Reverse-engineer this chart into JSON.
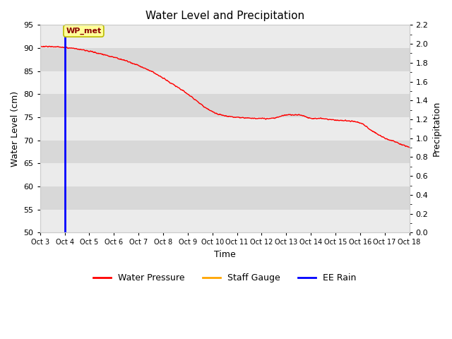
{
  "title": "Water Level and Precipitation",
  "xlabel": "Time",
  "ylabel_left": "Water Level (cm)",
  "ylabel_right": "Precipitation",
  "ylim_left": [
    50,
    95
  ],
  "ylim_right": [
    0.0,
    2.2
  ],
  "yticks_left": [
    50,
    55,
    60,
    65,
    70,
    75,
    80,
    85,
    90,
    95
  ],
  "yticks_right_major": [
    0.0,
    0.2,
    0.4,
    0.6,
    0.8,
    1.0,
    1.2,
    1.4,
    1.6,
    1.8,
    2.0,
    2.2
  ],
  "xtick_labels": [
    "Oct 3",
    "Oct 4",
    "Oct 5",
    "Oct 6",
    "Oct 7",
    "Oct 8",
    "Oct 9",
    "Oct 10",
    "Oct 11",
    "Oct 12",
    "Oct 13",
    "Oct 14",
    "Oct 15",
    "Oct 16",
    "Oct 17",
    "Oct 18"
  ],
  "water_pressure_color": "#FF0000",
  "staff_gauge_color": "#FFA500",
  "ee_rain_color": "#0000FF",
  "annotation_text": "WP_met",
  "annotation_bg": "#FFFF99",
  "annotation_border": "#BBBB00",
  "bg_color_light": "#EBEBEB",
  "bg_color_dark": "#D8D8D8",
  "grid_color": "#FFFFFF",
  "legend_entries": [
    "Water Pressure",
    "Staff Gauge",
    "EE Rain"
  ],
  "curve_keypoints_x": [
    0,
    0.5,
    1.0,
    1.5,
    2.0,
    2.5,
    3.0,
    3.5,
    4.0,
    4.5,
    5.0,
    5.5,
    6.0,
    6.5,
    7.0,
    7.5,
    8.0,
    8.5,
    9.0,
    9.5,
    10.0,
    10.5,
    11.0,
    11.5,
    12.0,
    12.5,
    13.0,
    13.5,
    14.0,
    14.5,
    15.0
  ],
  "curve_keypoints_y": [
    90.3,
    90.3,
    90.1,
    89.8,
    89.3,
    88.7,
    88.0,
    87.2,
    86.2,
    85.0,
    83.5,
    81.8,
    80.0,
    78.0,
    76.2,
    75.3,
    75.0,
    74.8,
    74.7,
    74.8,
    75.5,
    75.5,
    74.8,
    74.7,
    74.4,
    74.2,
    73.8,
    72.0,
    70.5,
    69.5,
    68.5
  ]
}
